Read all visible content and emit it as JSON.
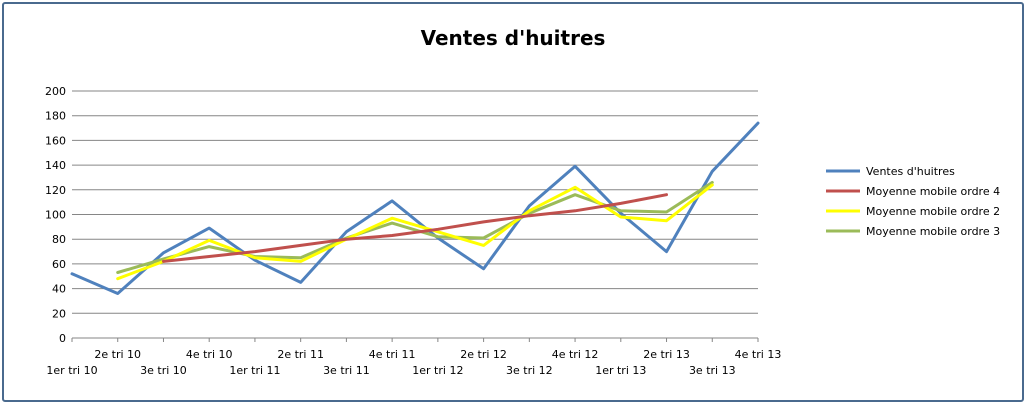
{
  "chart_data": {
    "type": "line",
    "title": "Ventes d'huitres",
    "xlabel": "",
    "ylabel": "",
    "ylim": [
      0,
      200
    ],
    "yticks": [
      0,
      20,
      40,
      60,
      80,
      100,
      120,
      140,
      160,
      180,
      200
    ],
    "grid": true,
    "legend_position": "right",
    "categories": [
      "1er tri 10",
      "2e tri 10",
      "3e tri 10",
      "4e tri 10",
      "1er tri 11",
      "2e tri 11",
      "3e tri 11",
      "4e tri 11",
      "1er tri 12",
      "2e tri 12",
      "3e tri 12",
      "4e tri 12",
      "1er tri 13",
      "2e tri 13",
      "3e tri 13",
      "4e tri 13"
    ],
    "series": [
      {
        "name": "Ventes d'huitres",
        "color": "#4f81bd",
        "values": [
          52,
          36,
          69,
          89,
          63,
          45,
          86,
          111,
          81,
          56,
          107,
          139,
          101,
          70,
          135,
          174
        ]
      },
      {
        "name": "Moyenne mobile ordre 4",
        "color": "#c0504d",
        "values": [
          null,
          null,
          62,
          66,
          70,
          75,
          80,
          83,
          88,
          94,
          99,
          103,
          109,
          116,
          null,
          null
        ]
      },
      {
        "name": "Moyenne mobile ordre 2",
        "color": "#ffff00",
        "values": [
          null,
          48,
          62,
          79,
          65,
          62,
          80,
          97,
          86,
          75,
          103,
          122,
          98,
          95,
          124,
          null
        ]
      },
      {
        "name": "Moyenne mobile ordre 3",
        "color": "#9bbb59",
        "values": [
          null,
          53,
          64,
          74,
          66,
          65,
          81,
          93,
          82,
          81,
          101,
          116,
          103,
          102,
          126,
          null
        ]
      }
    ]
  }
}
